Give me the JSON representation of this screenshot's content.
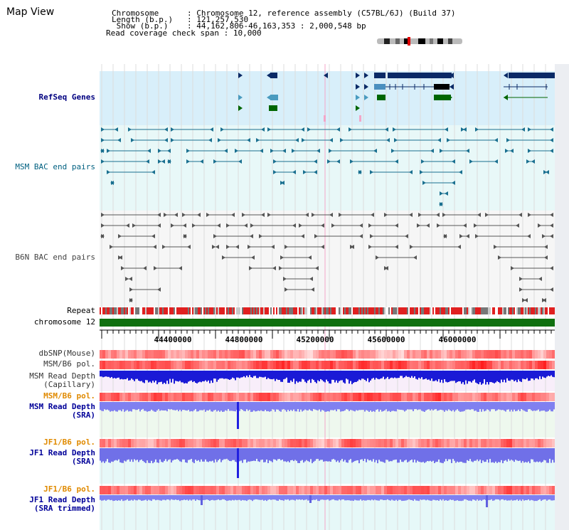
{
  "view": {
    "title": "Map View"
  },
  "info": [
    {
      "key": "Chromosome      ",
      "sep": ": ",
      "value": "Chromosome 12, reference assembly (C57BL/6J) (Build 37)"
    },
    {
      "key": "Length (b.p.)   ",
      "sep": ": ",
      "value": "121,257,530"
    },
    {
      "key": " Show (b.p.)    ",
      "sep": ": ",
      "value": "44,162,806-46,163,353 : 2,000,548 bp"
    },
    {
      "key": "Read coverage check span ",
      "sep": ": ",
      "value": "10,000"
    }
  ],
  "axis": {
    "chromosome_label": "chromosome 12",
    "ticks": [
      "44400000",
      "44800000",
      "45200000",
      "45600000",
      "46000000"
    ]
  },
  "tracks": {
    "refseq": {
      "label": "RefSeq Genes",
      "color": "#000080"
    },
    "msm_bac": {
      "label": "MSM BAC end pairs",
      "color": "#006080"
    },
    "b6n_bac": {
      "label": "B6N BAC end pairs",
      "color": "#444444"
    },
    "repeat": {
      "label": "Repeat",
      "color": "#000000"
    },
    "dbsnp": {
      "label": "dbSNP(Mouse)",
      "color": "#333333"
    },
    "msm_b6_pol_1": {
      "label": "MSM/B6 pol.",
      "color": "#333333"
    },
    "msm_depth_cap": {
      "label": "MSM Read Depth\n(Capillary)",
      "color": "#333333"
    },
    "msm_b6_pol_2": {
      "label": "MSM/B6 pol.",
      "color": "#e08a00"
    },
    "msm_depth_sra": {
      "label": "MSM Read Depth\n(SRA)",
      "color": "#000099"
    },
    "jf1_b6_pol_1": {
      "label": "JF1/B6 pol.",
      "color": "#e08a00"
    },
    "jf1_depth_sra": {
      "label": "JF1 Read Depth\n(SRA)",
      "color": "#000099"
    },
    "jf1_b6_pol_2": {
      "label": "JF1/B6 pol.",
      "color": "#e08a00"
    },
    "jf1_depth_trim": {
      "label": "JF1 Read Depth\n(SRA trimmed)",
      "color": "#000099"
    }
  }
}
